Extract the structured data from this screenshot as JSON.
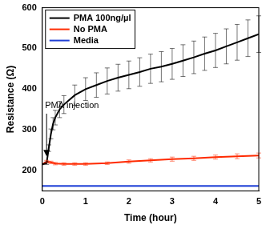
{
  "chart_data": {
    "type": "line",
    "x_label": "Time (hour)",
    "y_label": "Resistance (Ω)",
    "xlim": [
      0,
      5
    ],
    "xticks": [
      0,
      1,
      2,
      3,
      4,
      5
    ],
    "ylim": [
      150,
      600
    ],
    "yticks": [
      200,
      300,
      400,
      500,
      600
    ],
    "grid": false,
    "legend": "upper left",
    "annotations": [
      {
        "text": "PMA injection",
        "x": 0.1,
        "y": 235,
        "text_y": 320
      }
    ],
    "series": [
      {
        "name": "PMA 100ng/µl",
        "color": "#000000",
        "x": [
          0,
          0.1,
          0.15,
          0.2,
          0.25,
          0.3,
          0.4,
          0.5,
          0.75,
          1,
          1.25,
          1.5,
          1.75,
          2,
          2.25,
          2.5,
          2.75,
          3,
          3.25,
          3.5,
          3.75,
          4,
          4.25,
          4.5,
          4.75,
          5
        ],
        "values": [
          215,
          218,
          255,
          290,
          315,
          330,
          350,
          362,
          385,
          400,
          410,
          420,
          428,
          435,
          442,
          450,
          455,
          462,
          470,
          478,
          487,
          495,
          505,
          515,
          525,
          535
        ],
        "errors": [
          0,
          3,
          8,
          12,
          15,
          18,
          20,
          22,
          25,
          28,
          30,
          32,
          33,
          34,
          35,
          36,
          37,
          38,
          39,
          40,
          41,
          42,
          43,
          44,
          45,
          45
        ]
      },
      {
        "name": "No PMA",
        "color": "#ff2a00",
        "x": [
          0,
          0.1,
          0.2,
          0.3,
          0.5,
          0.75,
          1,
          1.5,
          2,
          2.5,
          3,
          3.5,
          4,
          4.5,
          5
        ],
        "values": [
          215,
          222,
          220,
          217,
          216,
          216,
          216,
          218,
          222,
          225,
          228,
          230,
          233,
          235,
          237
        ],
        "errors": [
          0,
          3,
          3,
          3,
          3,
          3,
          3,
          3,
          4,
          4,
          5,
          5,
          5,
          6,
          6
        ]
      },
      {
        "name": "Media",
        "color": "#1f3fd6",
        "x": [
          0,
          5
        ],
        "values": [
          162,
          162
        ]
      }
    ]
  }
}
